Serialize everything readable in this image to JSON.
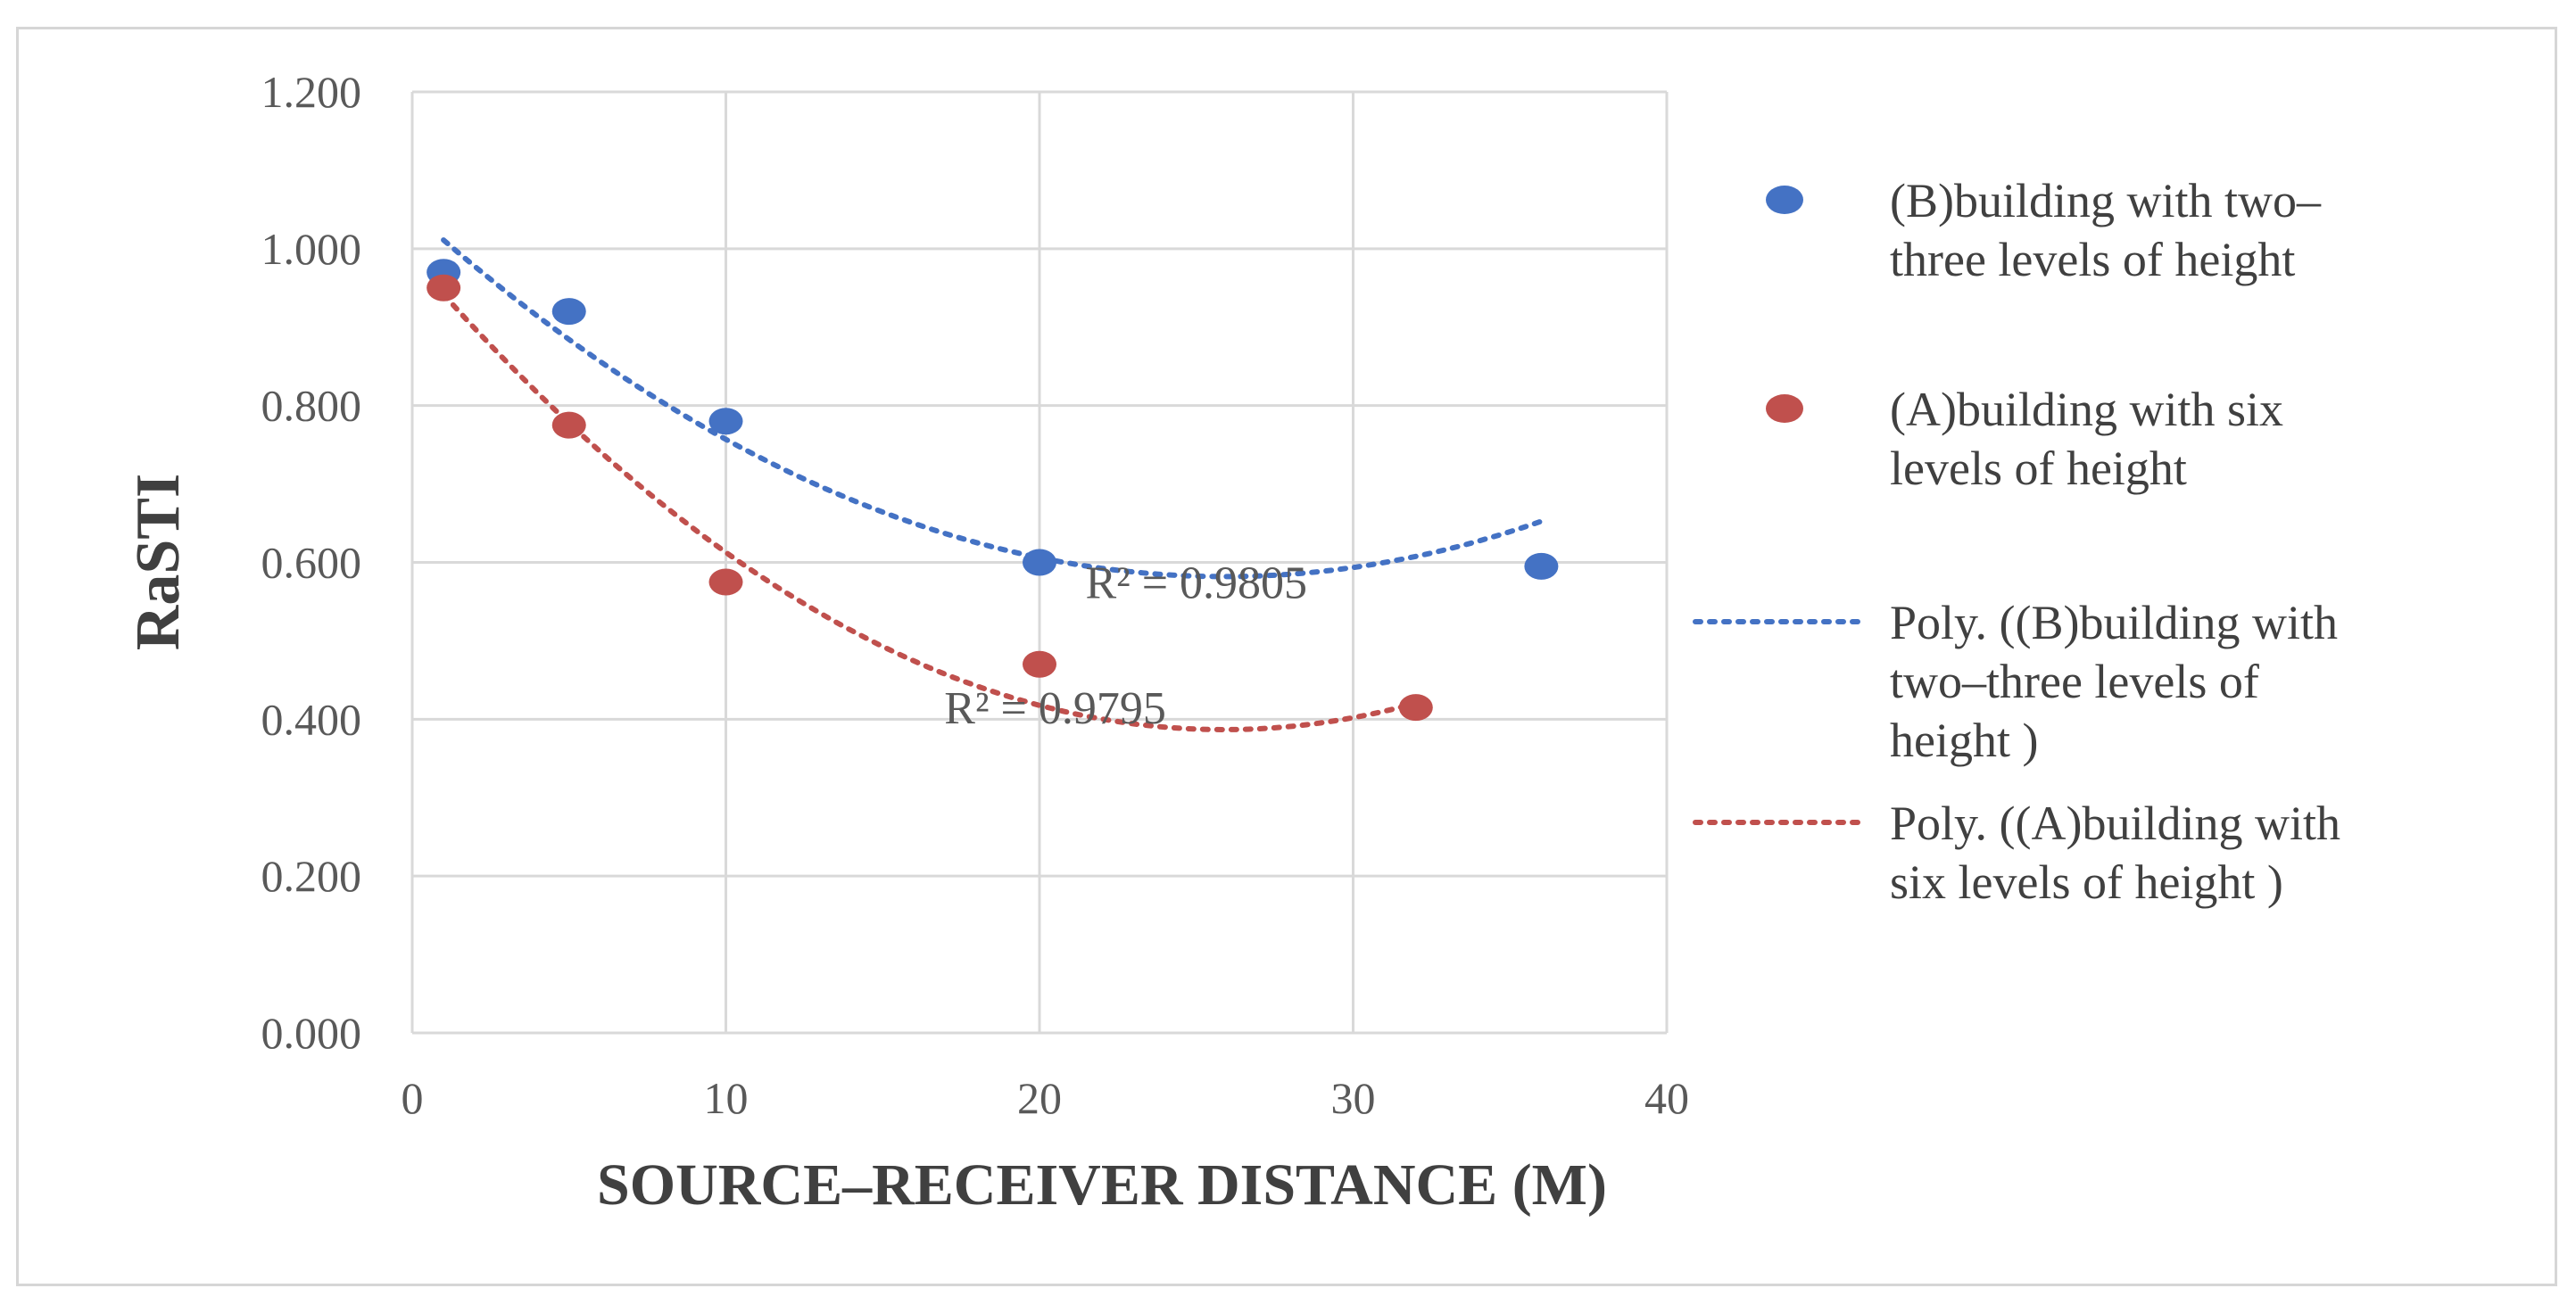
{
  "chart_data": {
    "type": "scatter",
    "title": "",
    "xlabel": "SOURCE–RECEIVER DISTANCE (M)",
    "ylabel": "RaSTI",
    "xlim": [
      0,
      40
    ],
    "ylim": [
      0,
      1.2
    ],
    "x_ticks": [
      0,
      10,
      20,
      30,
      40
    ],
    "y_ticks": [
      0.0,
      0.2,
      0.4,
      0.6,
      0.8,
      1.0,
      1.2
    ],
    "y_tick_labels": [
      "0.000",
      "0.200",
      "0.400",
      "0.600",
      "0.800",
      "1.000",
      "1.200"
    ],
    "grid": true,
    "legend_position": "right",
    "series": [
      {
        "name": "(B)building  with  two–three levels  of height",
        "legend_lines": [
          "(B)building  with  two–",
          "three levels  of height"
        ],
        "color": "#4472c4",
        "x": [
          1,
          5,
          10,
          20,
          36
        ],
        "y": [
          0.97,
          0.92,
          0.78,
          0.6,
          0.595
        ]
      },
      {
        "name": "(A)building with six levels of height",
        "legend_lines": [
          "(A)building with six",
          "levels of height"
        ],
        "color": "#c0504d",
        "x": [
          1,
          5,
          10,
          20,
          32
        ],
        "y": [
          0.95,
          0.775,
          0.575,
          0.47,
          0.415
        ]
      }
    ],
    "trendlines": [
      {
        "name": "Poly. ((B)building  with two–three levels  of height )",
        "legend_lines": [
          "Poly. ((B)building  with",
          "two–three levels  of",
          "height  )"
        ],
        "color": "#4472c4",
        "x_range": [
          1,
          36
        ],
        "coefficients": [
          1.0462,
          -0.03585,
          0.000692
        ],
        "r2_label": "R² = 0.9805",
        "r2_at": [
          25,
          0.575
        ]
      },
      {
        "name": "Poly. ((A)building with six levels of height )",
        "legend_lines": [
          "Poly. ((A)building with",
          "six levels of height )"
        ],
        "color": "#c0504d",
        "x_range": [
          1,
          32
        ],
        "coefficients": [
          0.9873,
          -0.04642,
          0.000897
        ],
        "r2_label": "R² = 0.9795",
        "r2_at": [
          20.5,
          0.415
        ]
      }
    ]
  }
}
